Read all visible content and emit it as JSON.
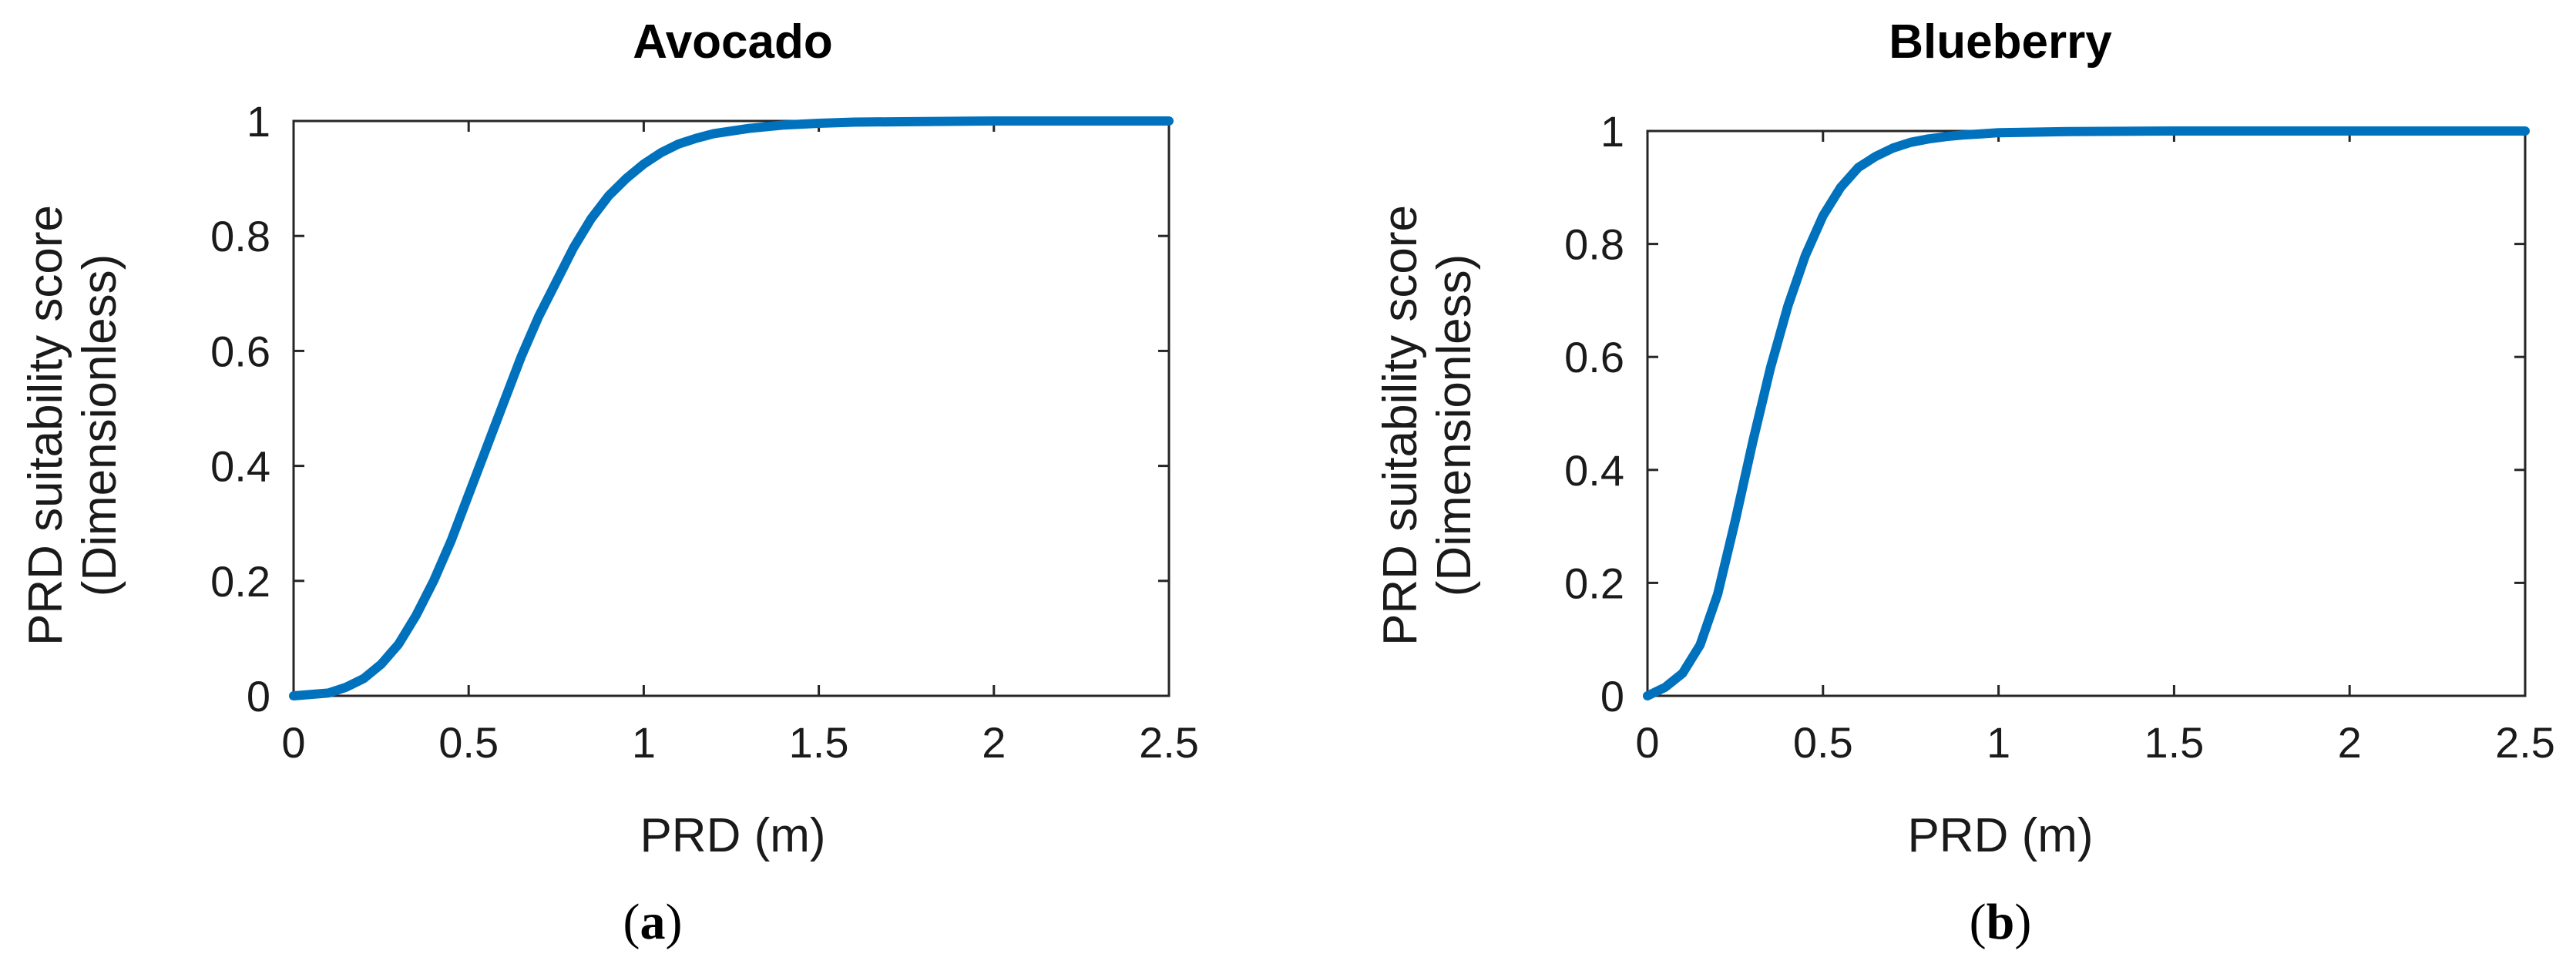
{
  "chart_data": [
    {
      "type": "line",
      "title": "Avocado",
      "xlabel": "PRD (m)",
      "ylabel": [
        "PRD suitability score",
        "(Dimensionless)"
      ],
      "panel_label": {
        "open": "(",
        "letter": "a",
        "close": ")"
      },
      "xlim": [
        0,
        2.5
      ],
      "ylim": [
        0,
        1
      ],
      "xticks": [
        "0",
        "0.5",
        "1",
        "1.5",
        "2",
        "2.5"
      ],
      "yticks": [
        "0",
        "0.2",
        "0.4",
        "0.6",
        "0.8",
        "1"
      ],
      "grid": false,
      "color": "#0072BD",
      "series": [
        {
          "x": [
            0,
            0.1,
            0.15,
            0.2,
            0.25,
            0.3,
            0.35,
            0.4,
            0.45,
            0.5,
            0.55,
            0.6,
            0.65,
            0.7,
            0.75,
            0.8,
            0.85,
            0.9,
            0.95,
            1.0,
            1.05,
            1.1,
            1.15,
            1.2,
            1.3,
            1.4,
            1.5,
            1.6,
            1.8,
            2.0,
            2.2,
            2.5
          ],
          "y": [
            0,
            0.005,
            0.015,
            0.03,
            0.055,
            0.09,
            0.14,
            0.2,
            0.27,
            0.35,
            0.43,
            0.51,
            0.59,
            0.66,
            0.72,
            0.78,
            0.83,
            0.87,
            0.9,
            0.925,
            0.945,
            0.96,
            0.97,
            0.978,
            0.987,
            0.993,
            0.996,
            0.998,
            0.999,
            1.0,
            1.0,
            1.0
          ]
        }
      ]
    },
    {
      "type": "line",
      "title": "Blueberry",
      "xlabel": "PRD (m)",
      "ylabel": [
        "PRD suitability score",
        "(Dimensionless)"
      ],
      "panel_label": {
        "open": "(",
        "letter": "b",
        "close": ")"
      },
      "xlim": [
        0,
        2.5
      ],
      "ylim": [
        0,
        1
      ],
      "xticks": [
        "0",
        "0.5",
        "1",
        "1.5",
        "2",
        "2.5"
      ],
      "yticks": [
        "0",
        "0.2",
        "0.4",
        "0.6",
        "0.8",
        "1"
      ],
      "grid": false,
      "color": "#0072BD",
      "series": [
        {
          "x": [
            0,
            0.05,
            0.1,
            0.15,
            0.2,
            0.25,
            0.3,
            0.35,
            0.4,
            0.45,
            0.5,
            0.55,
            0.6,
            0.65,
            0.7,
            0.75,
            0.8,
            0.85,
            0.9,
            0.95,
            1.0,
            1.1,
            1.2,
            1.5,
            2.0,
            2.5
          ],
          "y": [
            0,
            0.015,
            0.04,
            0.09,
            0.18,
            0.31,
            0.45,
            0.58,
            0.69,
            0.78,
            0.85,
            0.9,
            0.935,
            0.955,
            0.97,
            0.98,
            0.986,
            0.99,
            0.993,
            0.995,
            0.997,
            0.998,
            0.999,
            1.0,
            1.0,
            1.0
          ]
        }
      ]
    }
  ]
}
